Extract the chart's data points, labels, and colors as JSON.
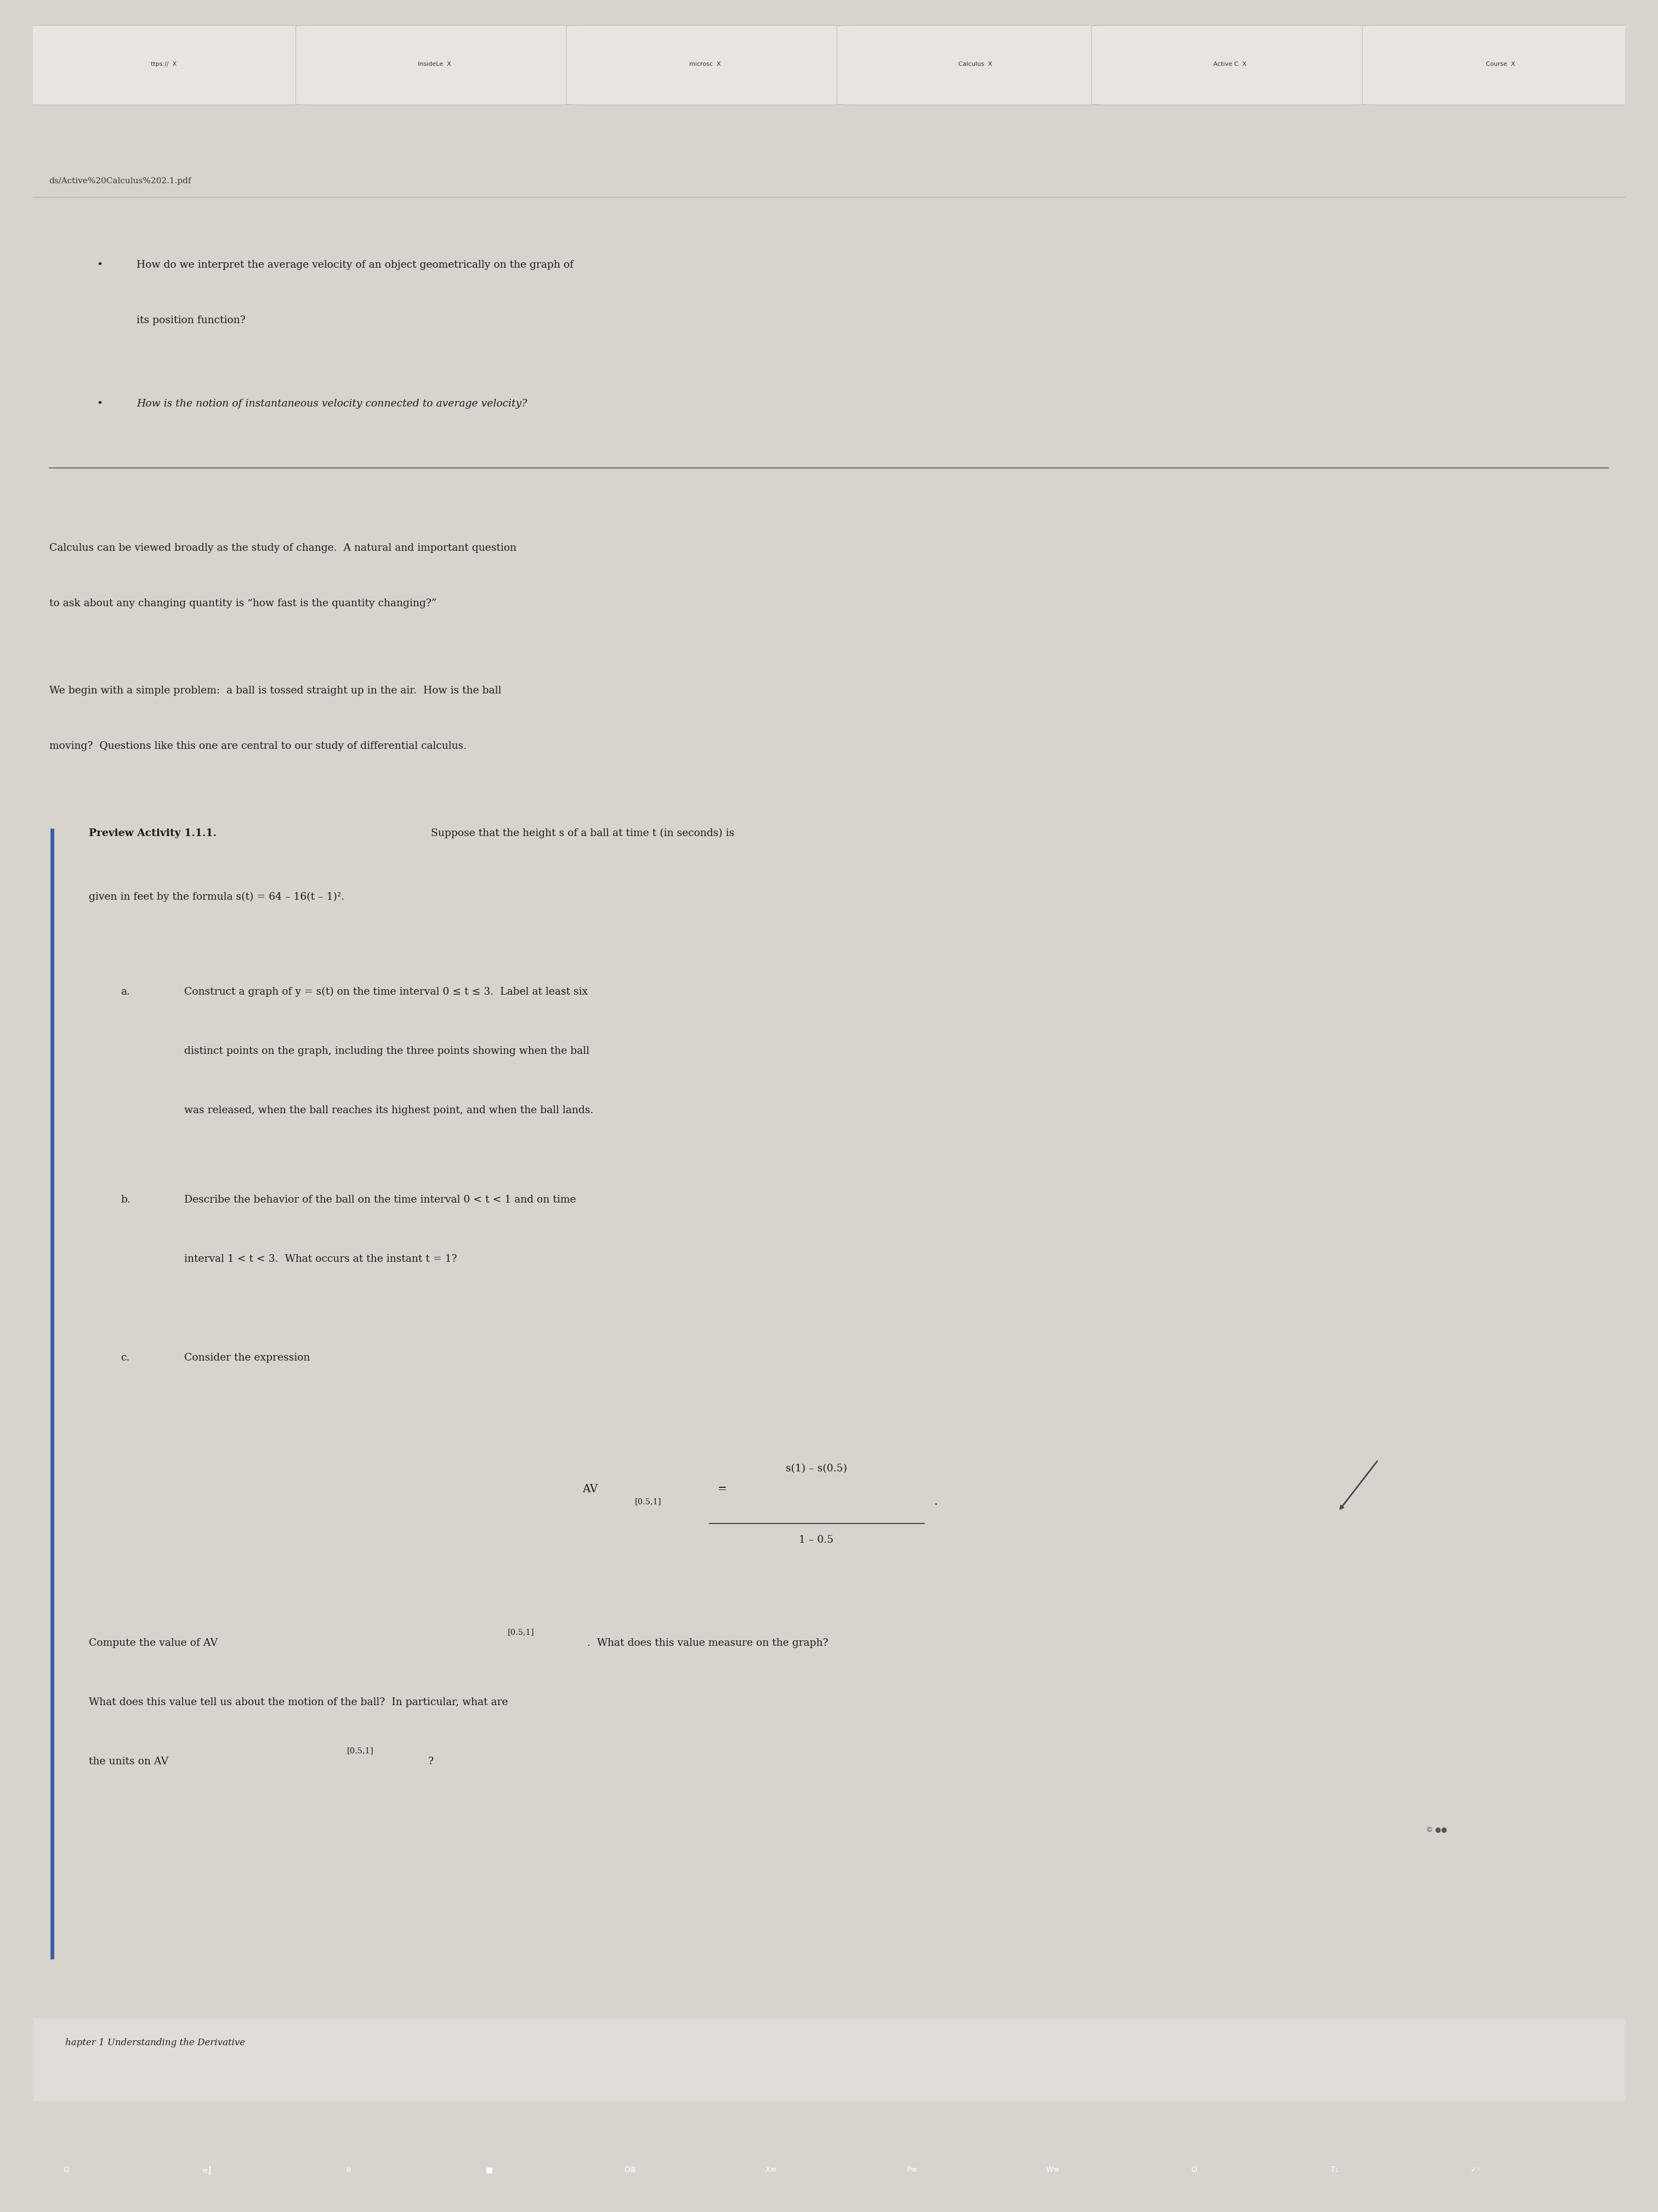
{
  "bg_color": "#d8d4cd",
  "page_bg": "#f0ede8",
  "text_color": "#1a1a1a",
  "url_text": "ds/Active%20Calculus%202.1.pdf",
  "tab_labels": [
    "ttps://  X",
    "InsideLe  X",
    "microsc  X",
    "Calculus  X",
    "Active C  X",
    "Course  X"
  ],
  "bullet1_line1": "How do we interpret the average velocity of an object geometrically on the graph of",
  "bullet1_line2": "its position function?",
  "bullet2": "How is the notion of instantaneous velocity connected to average velocity?",
  "para1_line1": "Calculus can be viewed broadly as the study of change.  A natural and important question",
  "para1_line2": "to ask about any changing quantity is “how fast is the quantity changing?”",
  "para2_line1": "We begin with a simple problem:  a ball is tossed straight up in the air.  How is the ball",
  "para2_line2": "moving?  Questions like this one are central to our study of differential calculus.",
  "preview_bold": "Preview Activity 1.1.1.",
  "preview_text": " Suppose that the height s of a ball at time t (in seconds) is",
  "preview_line2": "given in feet by the formula s(t) = 64 – 16(t – 1)².",
  "part_a_label": "a.",
  "part_a_line1": "Construct a graph of y = s(t) on the time interval 0 ≤ t ≤ 3.  Label at least six",
  "part_a_line2": "distinct points on the graph, including the three points showing when the ball",
  "part_a_line3": "was released, when the ball reaches its highest point, and when the ball lands.",
  "part_b_label": "b.",
  "part_b_line1": "Describe the behavior of the ball on the time interval 0 < t < 1 and on time",
  "part_b_line2": "interval 1 < t < 3.  What occurs at the instant t = 1?",
  "part_c_label": "c.",
  "part_c_line1": "Consider the expression",
  "av_num": "s(1) – s(0.5)",
  "av_den": "1 – 0.5",
  "compute_line1a": "Compute the value of AV",
  "compute_sub1": "[0.5,1]",
  "compute_line1b": ".  What does this value measure on the graph?",
  "compute_line2": "What does this value tell us about the motion of the ball?  In particular, what are",
  "compute_line3a": "the units on AV",
  "compute_sub2": "[0.5,1]",
  "compute_line3b": "?",
  "footer_text": "hapter 1 Understanding the Derivative",
  "sidebar_color": "#3a5fa0",
  "fs_main": 13.5,
  "fs_sub": 10.5
}
